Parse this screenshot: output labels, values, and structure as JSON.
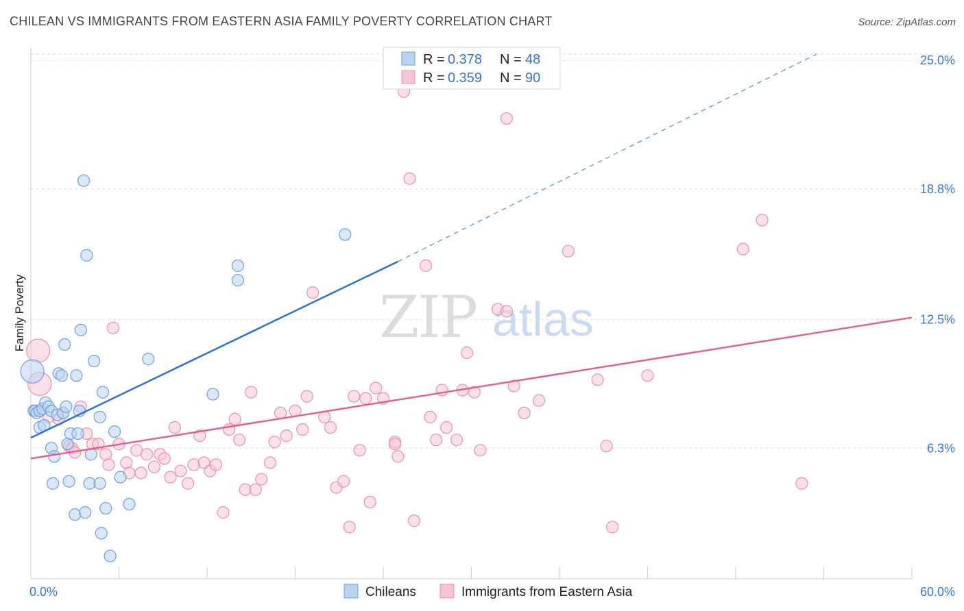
{
  "title": "CHILEAN VS IMMIGRANTS FROM EASTERN ASIA FAMILY POVERTY CORRELATION CHART",
  "source": "Source: ZipAtlas.com",
  "watermark": {
    "zip": "ZIP",
    "atlas": "atlas"
  },
  "legend_top": {
    "r_label": "R =",
    "n_label": "N =",
    "entries": [
      {
        "r": "0.378",
        "n": "48"
      },
      {
        "r": "0.359",
        "n": "90"
      }
    ]
  },
  "colors": {
    "chileans_fill": "#b9d3f3",
    "chileans_stroke": "#6f9fdc",
    "chileans_line": "#2d72d2",
    "eastern_fill": "#f7c6d6",
    "eastern_stroke": "#e890ae",
    "eastern_line": "#e0628d",
    "grid": "#dddddd",
    "tick": "#3a74c8"
  },
  "chart_data": {
    "type": "scatter",
    "xlabel": "",
    "ylabel": "Family Poverty",
    "xlim": [
      0,
      60
    ],
    "ylim": [
      0,
      25.6
    ],
    "x_tick_labels": [
      {
        "value": 0,
        "label": "0.0%"
      },
      {
        "value": 60,
        "label": "60.0%"
      }
    ],
    "y_tick_labels": [
      {
        "value": 6.3,
        "label": "6.3%"
      },
      {
        "value": 12.5,
        "label": "12.5%"
      },
      {
        "value": 18.8,
        "label": "18.8%"
      },
      {
        "value": 25.0,
        "label": "25.0%"
      }
    ],
    "legend_position": "bottom-center",
    "grid": true,
    "series": [
      {
        "name": "Chileans",
        "trend": {
          "x0": 0,
          "y0": 6.8,
          "x1": 25,
          "y1": 15.3,
          "dash_to_x": 53.5,
          "dash_to_y": 25.3
        },
        "points": [
          {
            "x": 0.2,
            "y": 8.1
          },
          {
            "x": 0.3,
            "y": 8.1
          },
          {
            "x": 0.4,
            "y": 8.0
          },
          {
            "x": 0.6,
            "y": 8.1
          },
          {
            "x": 0.6,
            "y": 7.3
          },
          {
            "x": 0.8,
            "y": 8.2
          },
          {
            "x": 0.9,
            "y": 7.4
          },
          {
            "x": 1.0,
            "y": 8.5
          },
          {
            "x": 1.2,
            "y": 8.3
          },
          {
            "x": 1.4,
            "y": 8.1
          },
          {
            "x": 1.4,
            "y": 6.3
          },
          {
            "x": 1.5,
            "y": 4.6
          },
          {
            "x": 1.6,
            "y": 5.9
          },
          {
            "x": 1.8,
            "y": 7.9
          },
          {
            "x": 1.9,
            "y": 9.9
          },
          {
            "x": 2.1,
            "y": 9.8
          },
          {
            "x": 2.2,
            "y": 8.0
          },
          {
            "x": 2.3,
            "y": 11.3
          },
          {
            "x": 2.4,
            "y": 8.3
          },
          {
            "x": 2.5,
            "y": 6.5
          },
          {
            "x": 2.6,
            "y": 4.7
          },
          {
            "x": 2.7,
            "y": 7.0
          },
          {
            "x": 3.0,
            "y": 3.1
          },
          {
            "x": 3.1,
            "y": 9.8
          },
          {
            "x": 3.2,
            "y": 7.0
          },
          {
            "x": 3.3,
            "y": 8.1
          },
          {
            "x": 3.4,
            "y": 12.0
          },
          {
            "x": 3.6,
            "y": 19.2
          },
          {
            "x": 3.7,
            "y": 3.2
          },
          {
            "x": 3.8,
            "y": 15.6
          },
          {
            "x": 4.0,
            "y": 4.6
          },
          {
            "x": 4.1,
            "y": 6.0
          },
          {
            "x": 4.3,
            "y": 10.5
          },
          {
            "x": 4.7,
            "y": 4.6
          },
          {
            "x": 4.7,
            "y": 7.8
          },
          {
            "x": 4.8,
            "y": 2.2
          },
          {
            "x": 4.9,
            "y": 9.0
          },
          {
            "x": 5.1,
            "y": 3.4
          },
          {
            "x": 5.4,
            "y": 1.1
          },
          {
            "x": 5.7,
            "y": 7.1
          },
          {
            "x": 6.1,
            "y": 4.9
          },
          {
            "x": 6.7,
            "y": 3.6
          },
          {
            "x": 8.0,
            "y": 10.6
          },
          {
            "x": 12.4,
            "y": 8.9
          },
          {
            "x": 14.1,
            "y": 15.1
          },
          {
            "x": 14.1,
            "y": 14.4
          },
          {
            "x": 21.4,
            "y": 16.6
          },
          {
            "x": 0.1,
            "y": 10.0,
            "big": true
          }
        ]
      },
      {
        "name": "Immigrants from Eastern Asia",
        "trend": {
          "x0": 0,
          "y0": 5.8,
          "x1": 60,
          "y1": 12.6
        },
        "points": [
          {
            "x": 0.5,
            "y": 11.0,
            "big": true
          },
          {
            "x": 0.6,
            "y": 9.4,
            "big": true
          },
          {
            "x": 1.2,
            "y": 7.8
          },
          {
            "x": 1.9,
            "y": 7.7
          },
          {
            "x": 2.2,
            "y": 8.0
          },
          {
            "x": 2.6,
            "y": 6.4
          },
          {
            "x": 2.8,
            "y": 6.3
          },
          {
            "x": 3.0,
            "y": 6.1
          },
          {
            "x": 3.4,
            "y": 8.3
          },
          {
            "x": 3.8,
            "y": 7.0
          },
          {
            "x": 4.2,
            "y": 6.5
          },
          {
            "x": 4.6,
            "y": 6.5
          },
          {
            "x": 5.1,
            "y": 6.0
          },
          {
            "x": 5.3,
            "y": 5.5
          },
          {
            "x": 5.6,
            "y": 12.1
          },
          {
            "x": 6.0,
            "y": 6.5
          },
          {
            "x": 6.5,
            "y": 5.6
          },
          {
            "x": 6.7,
            "y": 5.1
          },
          {
            "x": 7.2,
            "y": 6.2
          },
          {
            "x": 7.5,
            "y": 5.1
          },
          {
            "x": 7.9,
            "y": 6.0
          },
          {
            "x": 8.4,
            "y": 5.4
          },
          {
            "x": 8.8,
            "y": 6.0
          },
          {
            "x": 9.1,
            "y": 5.8
          },
          {
            "x": 9.5,
            "y": 4.9
          },
          {
            "x": 9.8,
            "y": 7.3
          },
          {
            "x": 10.2,
            "y": 5.2
          },
          {
            "x": 10.7,
            "y": 4.6
          },
          {
            "x": 11.1,
            "y": 5.5
          },
          {
            "x": 11.5,
            "y": 6.9
          },
          {
            "x": 11.8,
            "y": 5.6
          },
          {
            "x": 12.2,
            "y": 5.2
          },
          {
            "x": 12.6,
            "y": 5.5
          },
          {
            "x": 13.1,
            "y": 3.2
          },
          {
            "x": 13.5,
            "y": 7.2
          },
          {
            "x": 13.9,
            "y": 7.7
          },
          {
            "x": 14.2,
            "y": 6.7
          },
          {
            "x": 14.6,
            "y": 4.3
          },
          {
            "x": 15.0,
            "y": 9.0
          },
          {
            "x": 15.3,
            "y": 4.3
          },
          {
            "x": 15.7,
            "y": 4.8
          },
          {
            "x": 16.3,
            "y": 5.6
          },
          {
            "x": 16.6,
            "y": 6.6
          },
          {
            "x": 17.0,
            "y": 8.0
          },
          {
            "x": 17.4,
            "y": 6.9
          },
          {
            "x": 18.0,
            "y": 8.1
          },
          {
            "x": 18.5,
            "y": 7.2
          },
          {
            "x": 18.8,
            "y": 8.8
          },
          {
            "x": 19.2,
            "y": 13.8
          },
          {
            "x": 20.0,
            "y": 7.8
          },
          {
            "x": 20.4,
            "y": 7.3
          },
          {
            "x": 20.8,
            "y": 4.4
          },
          {
            "x": 21.3,
            "y": 4.7
          },
          {
            "x": 21.7,
            "y": 2.5
          },
          {
            "x": 22.0,
            "y": 8.8
          },
          {
            "x": 22.4,
            "y": 6.2
          },
          {
            "x": 22.8,
            "y": 8.7
          },
          {
            "x": 23.1,
            "y": 3.7
          },
          {
            "x": 23.5,
            "y": 9.2
          },
          {
            "x": 24.0,
            "y": 8.7
          },
          {
            "x": 24.8,
            "y": 6.6
          },
          {
            "x": 25.0,
            "y": 5.9
          },
          {
            "x": 25.4,
            "y": 23.5
          },
          {
            "x": 25.8,
            "y": 19.3
          },
          {
            "x": 26.1,
            "y": 2.8
          },
          {
            "x": 26.9,
            "y": 15.1
          },
          {
            "x": 27.2,
            "y": 7.8
          },
          {
            "x": 27.6,
            "y": 6.7
          },
          {
            "x": 28.0,
            "y": 9.1
          },
          {
            "x": 28.3,
            "y": 7.3
          },
          {
            "x": 29.0,
            "y": 6.7
          },
          {
            "x": 29.4,
            "y": 9.1
          },
          {
            "x": 29.7,
            "y": 10.9
          },
          {
            "x": 30.2,
            "y": 9.0
          },
          {
            "x": 30.6,
            "y": 6.2
          },
          {
            "x": 31.8,
            "y": 13.0
          },
          {
            "x": 32.4,
            "y": 12.9
          },
          {
            "x": 32.4,
            "y": 22.2
          },
          {
            "x": 32.9,
            "y": 9.3
          },
          {
            "x": 33.6,
            "y": 8.0
          },
          {
            "x": 34.6,
            "y": 8.6
          },
          {
            "x": 36.6,
            "y": 15.8
          },
          {
            "x": 38.6,
            "y": 9.6
          },
          {
            "x": 39.2,
            "y": 6.4
          },
          {
            "x": 39.6,
            "y": 2.5
          },
          {
            "x": 42.0,
            "y": 9.8
          },
          {
            "x": 48.5,
            "y": 15.9
          },
          {
            "x": 49.8,
            "y": 17.3
          },
          {
            "x": 52.5,
            "y": 4.6
          },
          {
            "x": 24.8,
            "y": 6.5
          }
        ]
      }
    ],
    "bottom_legend": [
      "Chileans",
      "Immigrants from Eastern Asia"
    ]
  }
}
